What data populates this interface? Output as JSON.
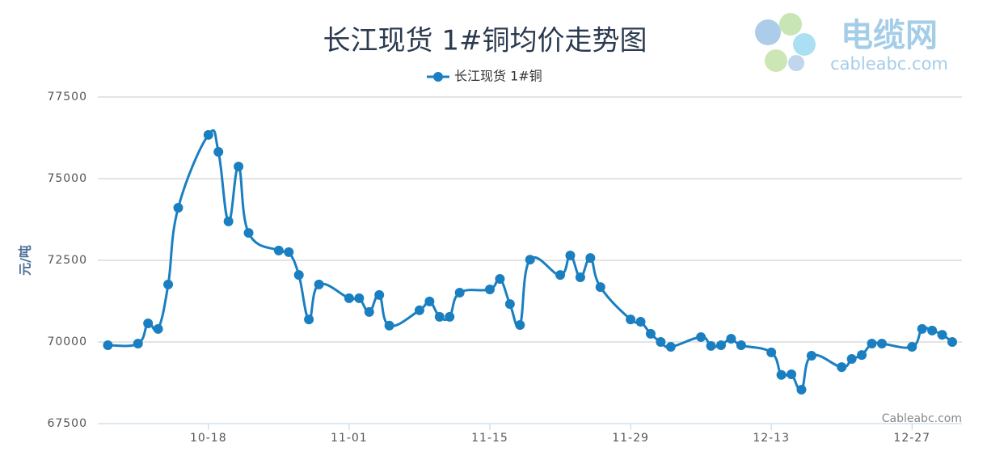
{
  "chart_data": {
    "type": "line",
    "title": "长江现货 1#铜均价走势图",
    "y_label": "元/吨",
    "credits": "Cableabc.com",
    "logo": {
      "name": "电缆网",
      "url": "cableabc.com"
    },
    "x": [
      "10-08",
      "10-11",
      "10-12",
      "10-13",
      "10-14",
      "10-15",
      "10-18",
      "10-19",
      "10-20",
      "10-21",
      "10-22",
      "10-25",
      "10-26",
      "10-27",
      "10-28",
      "10-29",
      "11-01",
      "11-02",
      "11-03",
      "11-04",
      "11-05",
      "11-08",
      "11-09",
      "11-10",
      "11-11",
      "11-12",
      "11-15",
      "11-16",
      "11-17",
      "11-18",
      "11-19",
      "11-22",
      "11-23",
      "11-24",
      "11-25",
      "11-26",
      "11-29",
      "11-30",
      "12-01",
      "12-02",
      "12-03",
      "12-06",
      "12-07",
      "12-08",
      "12-09",
      "12-10",
      "12-13",
      "12-14",
      "12-15",
      "12-16",
      "12-17",
      "12-20",
      "12-21",
      "12-22",
      "12-23",
      "12-24",
      "12-27",
      "12-28",
      "12-29",
      "12-30",
      "12-31"
    ],
    "series": [
      {
        "name": "长江现货 1#铜",
        "color": "#1a7fc1",
        "values": [
          69900,
          69950,
          70570,
          70400,
          71760,
          74110,
          76340,
          75820,
          73690,
          75370,
          73340,
          72800,
          72750,
          72050,
          70690,
          71760,
          71340,
          71340,
          70920,
          71440,
          70500,
          70970,
          71240,
          70770,
          70770,
          71510,
          71610,
          71930,
          71160,
          70520,
          72520,
          72050,
          72650,
          71980,
          72570,
          71680,
          70690,
          70620,
          70250,
          70000,
          69850,
          70150,
          69880,
          69900,
          70100,
          69900,
          69680,
          68990,
          69010,
          68540,
          69580,
          69230,
          69480,
          69600,
          69950,
          69950,
          69850,
          70400,
          70350,
          70220,
          70000
        ]
      }
    ],
    "xlim": [
      "10-07",
      "12-31"
    ],
    "xticks": [
      "10-18",
      "11-01",
      "11-15",
      "11-29",
      "12-13",
      "12-27"
    ],
    "ylim": [
      67500,
      77500
    ],
    "yticks": [
      67500,
      70000,
      72500,
      75000,
      77500
    ],
    "grid": true
  }
}
